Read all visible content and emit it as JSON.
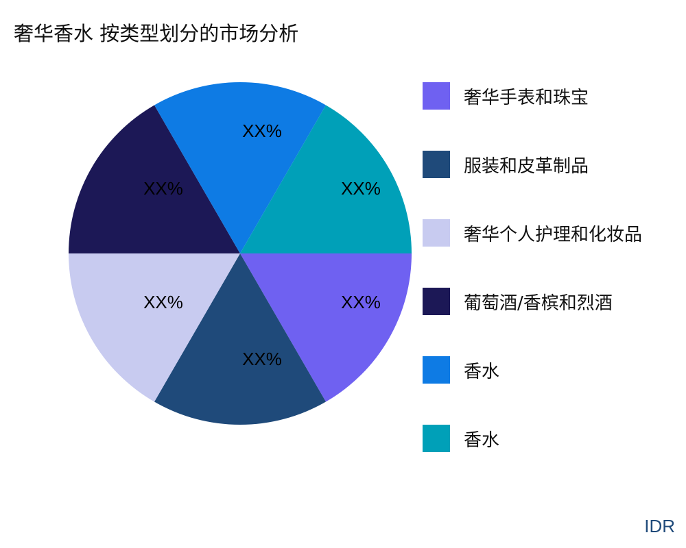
{
  "chart_data": {
    "type": "pie",
    "title": "奢华香水 按类型划分的市场分析",
    "categories": [
      "奢华手表和珠宝",
      "服装和皮革制品",
      "奢华个人护理和化妆品",
      "葡萄酒/香槟和烈酒",
      "香水",
      "香水"
    ],
    "values": [
      16.67,
      16.67,
      16.67,
      16.67,
      16.67,
      16.67
    ],
    "data_labels": [
      "XX%",
      "XX%",
      "XX%",
      "XX%",
      "XX%",
      "XX%"
    ],
    "colors": [
      "#6f61f1",
      "#1f4a7a",
      "#c8cbf0",
      "#1c1856",
      "#0e7be4",
      "#00a0b8"
    ],
    "legend_position": "right",
    "direction": "clockwise",
    "start_angle": "3 o'clock"
  },
  "watermark": "IDR"
}
